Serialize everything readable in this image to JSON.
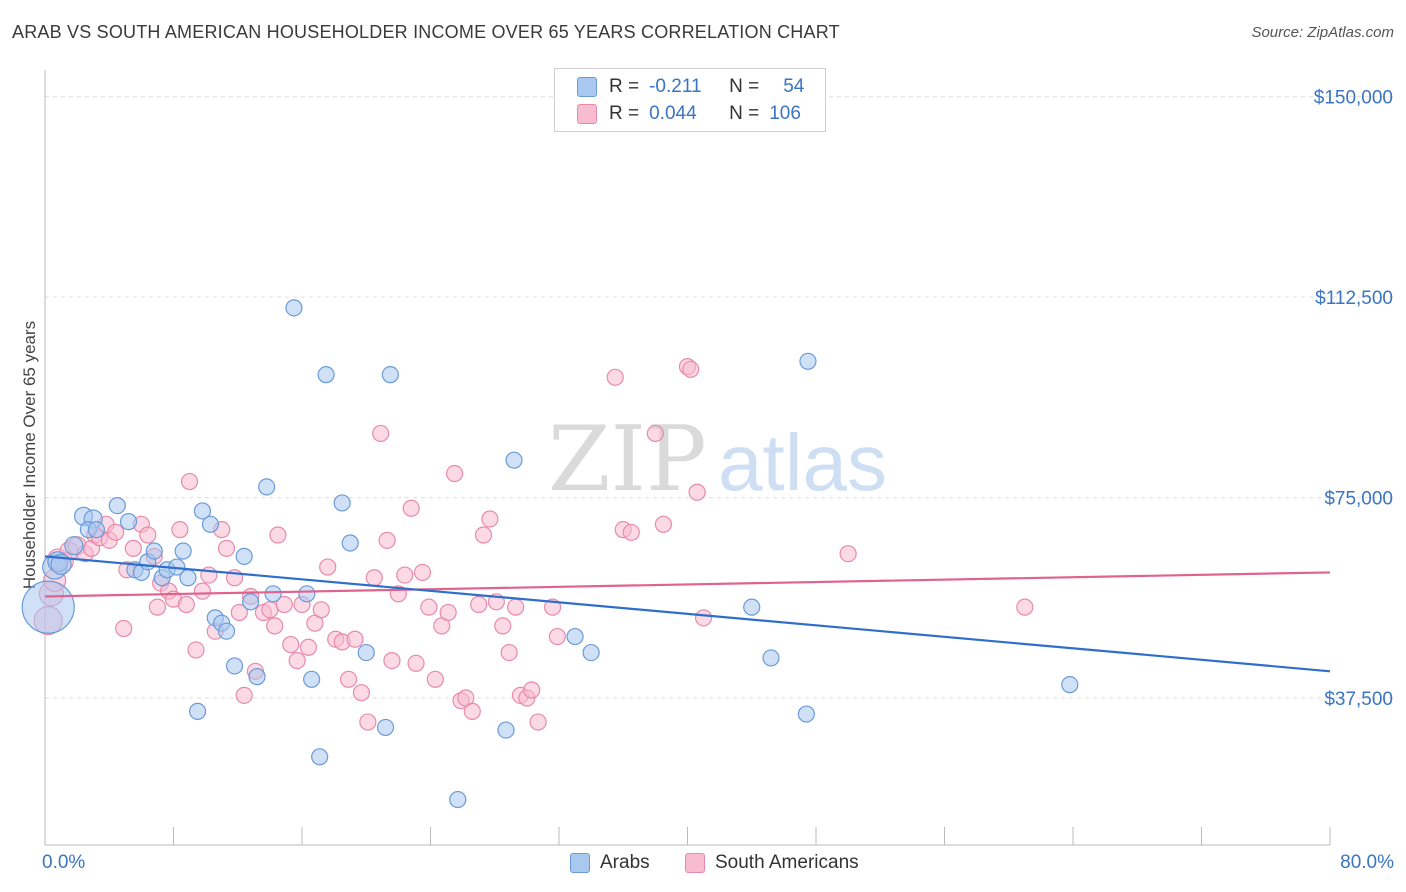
{
  "title": "ARAB VS SOUTH AMERICAN HOUSEHOLDER INCOME OVER 65 YEARS CORRELATION CHART",
  "source": "Source: ZipAtlas.com",
  "watermark": {
    "zip": "ZIP",
    "atlas": "atlas"
  },
  "legend_top": {
    "r_label": "R =",
    "n_label": "N =",
    "rows": [
      {
        "r": "-0.211",
        "n": "54"
      },
      {
        "r": "0.044",
        "n": "106"
      }
    ]
  },
  "legend_bottom": [
    "Arabs",
    "South Americans"
  ],
  "colors": {
    "arab_fill": "#a9c8f0",
    "arab_stroke": "#6a9bd8",
    "arab_line": "#2f6fcb",
    "sa_fill": "#f7bcd0",
    "sa_stroke": "#e88aab",
    "sa_line": "#e0628f",
    "axis_text": "#3a74c4",
    "grid": "#dddddd"
  },
  "chart_data": {
    "type": "scatter",
    "title": "ARAB VS SOUTH AMERICAN HOUSEHOLDER INCOME OVER 65 YEARS CORRELATION CHART",
    "xlabel": "",
    "ylabel": "Householder Income Over 65 years",
    "xlim": [
      0,
      80
    ],
    "ylim": [
      10000,
      155000
    ],
    "x_tick_labels": [
      "0.0%",
      "80.0%"
    ],
    "y_ticks": [
      37500,
      75000,
      112500,
      150000
    ],
    "y_tick_labels": [
      "$37,500",
      "$75,000",
      "$112,500",
      "$150,000"
    ],
    "grid": true,
    "series": [
      {
        "name": "Arabs",
        "r": -0.211,
        "n": 54,
        "trend": [
          [
            0,
            64000
          ],
          [
            80,
            42500
          ]
        ],
        "points": [
          [
            0.2,
            54500,
            26
          ],
          [
            0.6,
            62000,
            12
          ],
          [
            0.8,
            63000,
            10
          ],
          [
            1.0,
            62500,
            10
          ],
          [
            1.8,
            66000,
            9
          ],
          [
            2.4,
            71500,
            9
          ],
          [
            3.0,
            71000,
            9
          ],
          [
            2.7,
            69000,
            8
          ],
          [
            3.2,
            69000,
            8
          ],
          [
            4.5,
            73500,
            8
          ],
          [
            5.2,
            70500,
            8
          ],
          [
            5.6,
            61500,
            8
          ],
          [
            6.0,
            61000,
            8
          ],
          [
            6.4,
            63000,
            8
          ],
          [
            6.8,
            65000,
            8
          ],
          [
            7.3,
            60000,
            8
          ],
          [
            7.6,
            61500,
            8
          ],
          [
            8.2,
            62000,
            8
          ],
          [
            8.6,
            65000,
            8
          ],
          [
            8.9,
            60000,
            8
          ],
          [
            9.5,
            35000,
            8
          ],
          [
            9.8,
            72500,
            8
          ],
          [
            10.3,
            70000,
            8
          ],
          [
            10.6,
            52500,
            8
          ],
          [
            11.0,
            51500,
            8
          ],
          [
            11.3,
            50000,
            8
          ],
          [
            11.8,
            43500,
            8
          ],
          [
            12.4,
            64000,
            8
          ],
          [
            12.8,
            55500,
            8
          ],
          [
            13.2,
            41500,
            8
          ],
          [
            13.8,
            77000,
            8
          ],
          [
            14.2,
            57000,
            8
          ],
          [
            15.5,
            110500,
            8
          ],
          [
            16.3,
            57000,
            8
          ],
          [
            16.6,
            41000,
            8
          ],
          [
            17.1,
            26500,
            8
          ],
          [
            17.5,
            98000,
            8
          ],
          [
            18.5,
            74000,
            8
          ],
          [
            19.0,
            66500,
            8
          ],
          [
            20.0,
            46000,
            8
          ],
          [
            21.5,
            98000,
            8
          ],
          [
            21.2,
            32000,
            8
          ],
          [
            25.7,
            18500,
            8
          ],
          [
            28.7,
            31500,
            8
          ],
          [
            29.2,
            82000,
            8
          ],
          [
            33.0,
            49000,
            8
          ],
          [
            34.0,
            46000,
            8
          ],
          [
            44.0,
            54500,
            8
          ],
          [
            45.2,
            45000,
            8
          ],
          [
            47.5,
            100500,
            8
          ],
          [
            47.4,
            34500,
            8
          ],
          [
            63.8,
            40000,
            8
          ]
        ]
      },
      {
        "name": "South Americans",
        "r": 0.044,
        "n": 106,
        "trend": [
          [
            0,
            56500
          ],
          [
            80,
            61000
          ]
        ],
        "points": [
          [
            0.2,
            52000,
            14
          ],
          [
            0.4,
            57000,
            12
          ],
          [
            0.6,
            59500,
            11
          ],
          [
            0.8,
            63500,
            10
          ],
          [
            1.2,
            63000,
            9
          ],
          [
            1.5,
            65000,
            9
          ],
          [
            2.0,
            66000,
            9
          ],
          [
            2.5,
            64500,
            8
          ],
          [
            2.9,
            65500,
            8
          ],
          [
            3.1,
            68000,
            8
          ],
          [
            3.4,
            67500,
            8
          ],
          [
            3.8,
            70000,
            8
          ],
          [
            4.0,
            67000,
            8
          ],
          [
            4.4,
            68500,
            8
          ],
          [
            4.9,
            50500,
            8
          ],
          [
            5.1,
            61500,
            8
          ],
          [
            5.5,
            65500,
            8
          ],
          [
            6.0,
            70000,
            8
          ],
          [
            6.4,
            68000,
            8
          ],
          [
            6.8,
            64000,
            8
          ],
          [
            7.2,
            59000,
            8
          ],
          [
            7.0,
            54500,
            8
          ],
          [
            7.7,
            57500,
            8
          ],
          [
            8.0,
            56000,
            8
          ],
          [
            8.4,
            69000,
            8
          ],
          [
            8.8,
            55000,
            8
          ],
          [
            9.0,
            78000,
            8
          ],
          [
            9.4,
            46500,
            8
          ],
          [
            9.8,
            57500,
            8
          ],
          [
            10.2,
            60500,
            8
          ],
          [
            10.6,
            50000,
            8
          ],
          [
            11.0,
            69000,
            8
          ],
          [
            11.3,
            65500,
            8
          ],
          [
            11.8,
            60000,
            8
          ],
          [
            12.1,
            53500,
            8
          ],
          [
            12.4,
            38000,
            8
          ],
          [
            12.8,
            56500,
            8
          ],
          [
            13.1,
            42500,
            8
          ],
          [
            13.6,
            53500,
            8
          ],
          [
            14.0,
            54000,
            8
          ],
          [
            14.3,
            51000,
            8
          ],
          [
            14.5,
            68000,
            8
          ],
          [
            14.9,
            55000,
            8
          ],
          [
            15.3,
            47500,
            8
          ],
          [
            15.7,
            44500,
            8
          ],
          [
            16.0,
            55000,
            8
          ],
          [
            16.4,
            47000,
            8
          ],
          [
            16.8,
            51500,
            8
          ],
          [
            17.2,
            54000,
            8
          ],
          [
            17.6,
            62000,
            8
          ],
          [
            18.1,
            48500,
            8
          ],
          [
            18.5,
            48000,
            8
          ],
          [
            18.9,
            41000,
            8
          ],
          [
            19.3,
            48500,
            8
          ],
          [
            19.7,
            38500,
            8
          ],
          [
            20.1,
            33000,
            8
          ],
          [
            20.5,
            60000,
            8
          ],
          [
            20.9,
            87000,
            8
          ],
          [
            21.3,
            67000,
            8
          ],
          [
            21.6,
            44500,
            8
          ],
          [
            22.0,
            57000,
            8
          ],
          [
            22.4,
            60500,
            8
          ],
          [
            22.8,
            73000,
            8
          ],
          [
            23.1,
            44000,
            8
          ],
          [
            23.5,
            61000,
            8
          ],
          [
            23.9,
            54500,
            8
          ],
          [
            24.3,
            41000,
            8
          ],
          [
            24.7,
            51000,
            8
          ],
          [
            25.1,
            53500,
            8
          ],
          [
            25.5,
            79500,
            8
          ],
          [
            25.9,
            37000,
            8
          ],
          [
            26.2,
            37500,
            8
          ],
          [
            26.6,
            35000,
            8
          ],
          [
            27.0,
            55000,
            8
          ],
          [
            27.3,
            68000,
            8
          ],
          [
            27.7,
            71000,
            8
          ],
          [
            28.1,
            55500,
            8
          ],
          [
            28.5,
            51000,
            8
          ],
          [
            28.9,
            46000,
            8
          ],
          [
            29.3,
            54500,
            8
          ],
          [
            29.6,
            38000,
            8
          ],
          [
            30.0,
            37500,
            8
          ],
          [
            30.3,
            39000,
            8
          ],
          [
            30.7,
            33000,
            8
          ],
          [
            31.6,
            54500,
            8
          ],
          [
            31.9,
            49000,
            8
          ],
          [
            35.5,
            97500,
            8
          ],
          [
            36.0,
            69000,
            8
          ],
          [
            36.5,
            68500,
            8
          ],
          [
            38.0,
            87000,
            8
          ],
          [
            38.5,
            70000,
            8
          ],
          [
            40.0,
            99500,
            8
          ],
          [
            40.2,
            99000,
            8
          ],
          [
            40.6,
            76000,
            8
          ],
          [
            41.0,
            52500,
            8
          ],
          [
            50.0,
            64500,
            8
          ],
          [
            61.0,
            54500,
            8
          ]
        ]
      }
    ]
  }
}
